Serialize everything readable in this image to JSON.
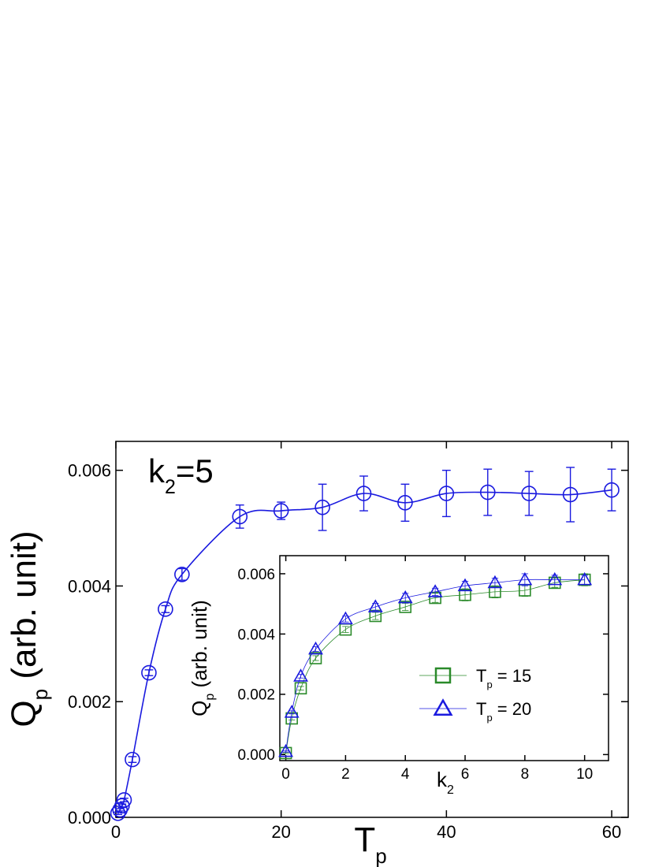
{
  "chart_data": [
    {
      "type": "scatter",
      "xlabel": [
        "T",
        "p"
      ],
      "ylabel": [
        "Q",
        "p",
        " (arb. unit)"
      ],
      "annotation": [
        "k",
        "2",
        "=5"
      ],
      "xlim": [
        0,
        62
      ],
      "ylim": [
        0,
        0.0065
      ],
      "xticks": [
        0,
        20,
        40,
        60
      ],
      "yticks": [
        {
          "value": 0,
          "label": "0.000"
        },
        {
          "value": 0.002,
          "label": "0.002"
        },
        {
          "value": 0.004,
          "label": "0.004"
        },
        {
          "value": 0.006,
          "label": "0.006"
        }
      ],
      "series": [
        {
          "color": "#1a1adf",
          "marker": "circle",
          "x": [
            0.25,
            0.5,
            0.75,
            1,
            2,
            4,
            6,
            8,
            15,
            20,
            25,
            30,
            35,
            40,
            45,
            50,
            55,
            60
          ],
          "values": [
            7e-05,
            0.00013,
            0.0002,
            0.0003,
            0.001,
            0.0025,
            0.0036,
            0.0042,
            0.0052,
            0.0053,
            0.00536,
            0.0056,
            0.00544,
            0.0056,
            0.00562,
            0.0056,
            0.00558,
            0.00566
          ],
          "errors": [
            2e-05,
            2e-05,
            3e-05,
            3e-05,
            5e-05,
            5e-05,
            6e-05,
            0.0001,
            0.0002,
            0.00015,
            0.0004,
            0.0003,
            0.00032,
            0.0004,
            0.0004,
            0.00038,
            0.00047,
            0.00036
          ]
        }
      ]
    },
    {
      "type": "scatter",
      "xlabel": [
        "k",
        "2"
      ],
      "ylabel": [
        "Q",
        "p",
        " (arb. unit)"
      ],
      "xlim": [
        -0.2,
        10.8
      ],
      "ylim": [
        -0.0002,
        0.0066
      ],
      "xticks": [
        0,
        2,
        4,
        6,
        8,
        10
      ],
      "yticks": [
        {
          "value": 0,
          "label": "0.000"
        },
        {
          "value": 0.002,
          "label": "0.002"
        },
        {
          "value": 0.004,
          "label": "0.004"
        },
        {
          "value": 0.006,
          "label": "0.006"
        }
      ],
      "legend": "center right",
      "series": [
        {
          "name": [
            "T",
            "p",
            " = 15"
          ],
          "color": "#2a8a2a",
          "marker": "square",
          "x": [
            0,
            0.2,
            0.5,
            1,
            2,
            3,
            4,
            5,
            6,
            7,
            8,
            9,
            10
          ],
          "values": [
            5e-05,
            0.0012,
            0.0022,
            0.0032,
            0.00415,
            0.0046,
            0.0049,
            0.0052,
            0.0053,
            0.0054,
            0.00545,
            0.0057,
            0.0058
          ],
          "errors": [
            2e-05,
            5e-05,
            6e-05,
            8e-05,
            0.0001,
            0.00012,
            0.00012,
            0.00015,
            0.0002,
            0.0002,
            0.0002,
            0.00015,
            0.0002
          ]
        },
        {
          "name": [
            "T",
            "p",
            " = 20"
          ],
          "color": "#1a1adf",
          "marker": "triangle",
          "x": [
            0,
            0.2,
            0.5,
            1,
            2,
            3,
            4,
            5,
            6,
            7,
            8,
            9,
            10
          ],
          "values": [
            0.0001,
            0.0014,
            0.0026,
            0.0035,
            0.0045,
            0.0049,
            0.0052,
            0.0054,
            0.0056,
            0.0057,
            0.0058,
            0.0058,
            0.0058
          ],
          "errors": [
            2e-05,
            5e-05,
            6e-05,
            8e-05,
            0.0001,
            0.00012,
            0.00015,
            0.00012,
            0.00015,
            0.00015,
            0.0002,
            0.00015,
            0.00015
          ]
        }
      ]
    }
  ]
}
